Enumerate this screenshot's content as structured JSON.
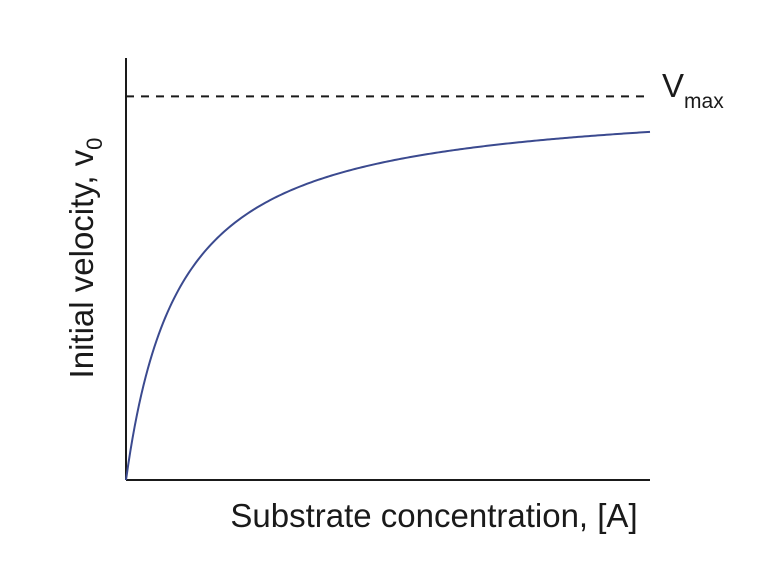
{
  "chart_data": {
    "type": "line",
    "xlabel": {
      "main": "Substrate concentration, [A]"
    },
    "ylabel": {
      "main": "Initial velocity, v",
      "sub": "0"
    },
    "vmax_label": {
      "main": "V",
      "sub": "max"
    },
    "vmax_value": 1.0,
    "km": 0.102,
    "xlim": [
      0,
      1
    ],
    "ylim": [
      0,
      1.1
    ],
    "grid": false,
    "series": [
      {
        "curve": "michaelis-menten",
        "color": "#3b4a8f"
      }
    ],
    "reference_line": {
      "value": 1.0,
      "style": "dashed",
      "color": "#1a1a1a"
    }
  }
}
